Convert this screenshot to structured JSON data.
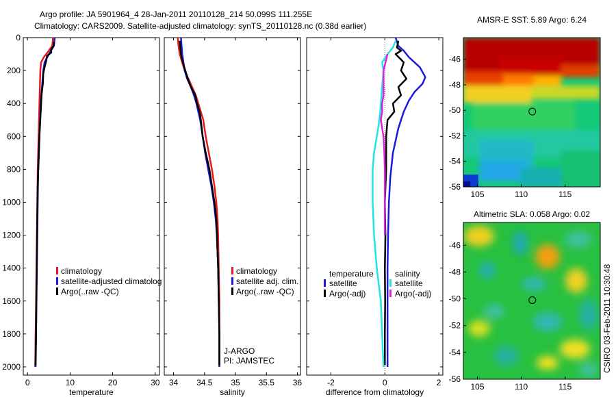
{
  "header": {
    "line1": "Argo profile: JA 5901964_4 28-Jan-2011 20110128_214 50.099S 111.255E",
    "line2": "Climatology: CARS2009. Satellite-adjusted climatology: synTS_20110128.nc (0.38d earlier)"
  },
  "side_label": "CSIRO 03-Feb-2011 10:30:48",
  "colors": {
    "climatology": "#e41a1c",
    "satellite": "#1a1adf",
    "argo": "#000000",
    "cyan": "#22e4e4",
    "magenta": "#e020e0"
  },
  "chart_data": [
    {
      "type": "line",
      "id": "temperature",
      "xlabel": "temperature",
      "ylabel": "",
      "xlim": [
        -1,
        31
      ],
      "ylim": [
        2050,
        0
      ],
      "xticks": [
        "0",
        "10",
        "20",
        "30"
      ],
      "xtick_values": [
        0,
        10,
        20,
        30
      ],
      "yticks": [
        "0",
        "200",
        "400",
        "600",
        "800",
        "1000",
        "1200",
        "1400",
        "1600",
        "1800",
        "2000"
      ],
      "ytick_values": [
        0,
        200,
        400,
        600,
        800,
        1000,
        1200,
        1400,
        1600,
        1800,
        2000
      ],
      "legend": [
        "climatology",
        "satellite-adjusted climatolog",
        "Argo(..raw -QC)"
      ],
      "series": [
        {
          "name": "climatology",
          "color": "#e41a1c",
          "points": [
            [
              6.0,
              0
            ],
            [
              5.8,
              50
            ],
            [
              5.0,
              80
            ],
            [
              3.8,
              120
            ],
            [
              3.2,
              150
            ],
            [
              3.0,
              200
            ],
            [
              2.9,
              300
            ],
            [
              2.8,
              400
            ],
            [
              2.6,
              600
            ],
            [
              2.4,
              800
            ],
            [
              2.3,
              1000
            ],
            [
              2.2,
              1200
            ],
            [
              2.1,
              1400
            ],
            [
              2.0,
              1600
            ],
            [
              1.9,
              1800
            ],
            [
              1.8,
              2000
            ]
          ]
        },
        {
          "name": "satellite-adjusted climatology",
          "color": "#1a1adf",
          "points": [
            [
              6.4,
              0
            ],
            [
              6.2,
              50
            ],
            [
              5.5,
              80
            ],
            [
              4.6,
              120
            ],
            [
              4.0,
              150
            ],
            [
              3.7,
              200
            ],
            [
              3.4,
              300
            ],
            [
              3.1,
              400
            ],
            [
              2.8,
              600
            ],
            [
              2.5,
              800
            ],
            [
              2.4,
              1000
            ],
            [
              2.3,
              1200
            ],
            [
              2.2,
              1400
            ],
            [
              2.1,
              1600
            ],
            [
              2.0,
              1800
            ],
            [
              1.9,
              2000
            ]
          ]
        },
        {
          "name": "Argo(..raw -QC)",
          "color": "#000000",
          "points": [
            [
              6.2,
              25
            ],
            [
              6.1,
              50
            ],
            [
              5.5,
              75
            ],
            [
              5.6,
              90
            ],
            [
              4.6,
              110
            ],
            [
              4.4,
              140
            ],
            [
              4.0,
              180
            ],
            [
              3.7,
              220
            ],
            [
              3.6,
              280
            ],
            [
              3.3,
              350
            ],
            [
              3.1,
              450
            ],
            [
              2.8,
              600
            ],
            [
              2.6,
              750
            ],
            [
              2.4,
              900
            ],
            [
              2.3,
              1100
            ],
            [
              2.2,
              1300
            ],
            [
              2.1,
              1500
            ],
            [
              2.0,
              1800
            ],
            [
              1.9,
              1990
            ]
          ]
        }
      ]
    },
    {
      "type": "line",
      "id": "salinity",
      "xlabel": "salinity",
      "xlim": [
        33.85,
        36.05
      ],
      "ylim": [
        2050,
        0
      ],
      "xticks": [
        "34",
        "34.5",
        "35",
        "35.5",
        "36"
      ],
      "xtick_values": [
        34,
        34.5,
        35,
        35.5,
        36
      ],
      "legend": [
        "climatology",
        "satellite adj. clim.",
        "Argo(..raw -QC)"
      ],
      "annotations": [
        "J-ARGO",
        "PI: JAMSTEC"
      ],
      "series": [
        {
          "name": "climatology",
          "color": "#e41a1c",
          "points": [
            [
              34.07,
              0
            ],
            [
              34.08,
              50
            ],
            [
              34.1,
              100
            ],
            [
              34.14,
              150
            ],
            [
              34.18,
              200
            ],
            [
              34.24,
              250
            ],
            [
              34.3,
              300
            ],
            [
              34.36,
              350
            ],
            [
              34.4,
              400
            ],
            [
              34.44,
              450
            ],
            [
              34.48,
              500
            ],
            [
              34.52,
              600
            ],
            [
              34.57,
              700
            ],
            [
              34.62,
              800
            ],
            [
              34.66,
              900
            ],
            [
              34.69,
              1000
            ],
            [
              34.71,
              1100
            ],
            [
              34.72,
              1200
            ],
            [
              34.73,
              1400
            ],
            [
              34.74,
              1600
            ],
            [
              34.74,
              1800
            ],
            [
              34.74,
              2000
            ]
          ]
        },
        {
          "name": "satellite adj. clim.",
          "color": "#1a1adf",
          "points": [
            [
              34.12,
              0
            ],
            [
              34.13,
              50
            ],
            [
              34.14,
              100
            ],
            [
              34.16,
              150
            ],
            [
              34.18,
              200
            ],
            [
              34.22,
              250
            ],
            [
              34.28,
              300
            ],
            [
              34.33,
              350
            ],
            [
              34.37,
              400
            ],
            [
              34.4,
              450
            ],
            [
              34.43,
              500
            ],
            [
              34.47,
              600
            ],
            [
              34.51,
              700
            ],
            [
              34.56,
              800
            ],
            [
              34.61,
              900
            ],
            [
              34.65,
              1000
            ],
            [
              34.68,
              1100
            ],
            [
              34.7,
              1200
            ],
            [
              34.72,
              1400
            ],
            [
              34.73,
              1600
            ],
            [
              34.74,
              1800
            ],
            [
              34.74,
              2000
            ]
          ]
        },
        {
          "name": "Argo(..raw -QC)",
          "color": "#000000",
          "points": [
            [
              34.1,
              20
            ],
            [
              34.11,
              60
            ],
            [
              34.12,
              100
            ],
            [
              34.15,
              150
            ],
            [
              34.19,
              200
            ],
            [
              34.23,
              250
            ],
            [
              34.28,
              300
            ],
            [
              34.35,
              350
            ],
            [
              34.38,
              400
            ],
            [
              34.42,
              450
            ],
            [
              34.44,
              500
            ],
            [
              34.47,
              600
            ],
            [
              34.52,
              700
            ],
            [
              34.58,
              800
            ],
            [
              34.62,
              900
            ],
            [
              34.66,
              1000
            ],
            [
              34.69,
              1100
            ],
            [
              34.7,
              1200
            ],
            [
              34.72,
              1400
            ],
            [
              34.73,
              1600
            ],
            [
              34.74,
              1800
            ],
            [
              34.74,
              1990
            ]
          ]
        }
      ]
    },
    {
      "type": "line",
      "id": "difference",
      "xlabel": "difference from climatology",
      "xlim": [
        -2.9,
        2.15
      ],
      "ylim": [
        2050,
        0
      ],
      "xticks": [
        "-2",
        "0",
        "2"
      ],
      "xtick_values": [
        -2,
        0,
        2
      ],
      "legend_groups": [
        {
          "title": "temperature",
          "items": [
            "satellite",
            "Argo(-adj)"
          ]
        },
        {
          "title": "salinity",
          "items": [
            "satellite",
            "Argo(-adj)"
          ]
        }
      ],
      "series": [
        {
          "name": "temperature satellite",
          "color": "#1a1adf",
          "points": [
            [
              0.4,
              0
            ],
            [
              0.5,
              50
            ],
            [
              0.7,
              80
            ],
            [
              0.9,
              120
            ],
            [
              1.1,
              150
            ],
            [
              1.3,
              180
            ],
            [
              1.5,
              240
            ],
            [
              1.4,
              280
            ],
            [
              1.1,
              330
            ],
            [
              0.9,
              380
            ],
            [
              0.7,
              450
            ],
            [
              0.5,
              550
            ],
            [
              0.3,
              700
            ],
            [
              0.2,
              850
            ],
            [
              0.15,
              1000
            ],
            [
              0.12,
              1200
            ],
            [
              0.1,
              1400
            ],
            [
              0.1,
              1600
            ],
            [
              0.1,
              1800
            ],
            [
              0.1,
              2000
            ]
          ]
        },
        {
          "name": "temperature Argo(-adj)",
          "color": "#000000",
          "points": [
            [
              0.5,
              20
            ],
            [
              0.45,
              60
            ],
            [
              0.6,
              80
            ],
            [
              0.4,
              100
            ],
            [
              0.7,
              150
            ],
            [
              0.6,
              200
            ],
            [
              0.8,
              250
            ],
            [
              0.5,
              300
            ],
            [
              0.6,
              350
            ],
            [
              0.3,
              400
            ],
            [
              0.35,
              450
            ],
            [
              0.1,
              500
            ],
            [
              0.05,
              600
            ],
            [
              0.05,
              800
            ],
            [
              0.0,
              1000
            ],
            [
              0.02,
              1200
            ],
            [
              0.0,
              1400
            ],
            [
              0.01,
              1600
            ],
            [
              0.0,
              1800
            ],
            [
              0.0,
              1990
            ]
          ]
        },
        {
          "name": "salinity satellite",
          "color": "#22e4e4",
          "points": [
            [
              0.4,
              20
            ],
            [
              0.3,
              60
            ],
            [
              0.1,
              100
            ],
            [
              -0.1,
              150
            ],
            [
              -0.05,
              200
            ],
            [
              -0.1,
              300
            ],
            [
              -0.15,
              400
            ],
            [
              -0.2,
              500
            ],
            [
              -0.3,
              600
            ],
            [
              -0.4,
              700
            ],
            [
              -0.45,
              800
            ],
            [
              -0.45,
              1000
            ],
            [
              -0.4,
              1200
            ],
            [
              -0.3,
              1400
            ],
            [
              -0.15,
              1600
            ],
            [
              -0.1,
              1800
            ],
            [
              -0.05,
              2000
            ]
          ]
        },
        {
          "name": "salinity Argo(-adj)",
          "color": "#e020e0",
          "points": [
            [
              0.1,
              100
            ],
            [
              -0.05,
              200
            ],
            [
              -0.05,
              300
            ],
            [
              -0.05,
              350
            ],
            [
              -0.1,
              400
            ],
            [
              -0.1,
              450
            ],
            [
              -0.15,
              500
            ],
            [
              -0.1,
              550
            ],
            [
              -0.05,
              600
            ],
            [
              -0.02,
              700
            ],
            [
              0.0,
              800
            ],
            [
              0.0,
              1000
            ],
            [
              0.0,
              1200
            ]
          ]
        }
      ]
    },
    {
      "type": "heatmap",
      "id": "sst",
      "title": "AMSR-E SST: 5.89 Argo: 6.24",
      "xlim": [
        103.4,
        119.0
      ],
      "ylim": [
        -56,
        -44.3
      ],
      "xticks": [
        "105",
        "110",
        "115"
      ],
      "xtick_values": [
        105,
        110,
        115
      ],
      "yticks": [
        "-46",
        "-48",
        "-50",
        "-52",
        "-54",
        "-56"
      ],
      "ytick_values": [
        -46,
        -48,
        -50,
        -52,
        -54,
        -56
      ],
      "marker": {
        "lon": 111.255,
        "lat": -50.099
      }
    },
    {
      "type": "heatmap",
      "id": "sla",
      "title": "Altimetric SLA: 0.058 Argo: 0.02",
      "xlim": [
        103.4,
        119.0
      ],
      "ylim": [
        -56,
        -44.3
      ],
      "xticks": [
        "105",
        "110",
        "115"
      ],
      "xtick_values": [
        105,
        110,
        115
      ],
      "yticks": [
        "-46",
        "-48",
        "-50",
        "-52",
        "-54",
        "-56"
      ],
      "ytick_values": [
        -46,
        -48,
        -50,
        -52,
        -54,
        -56
      ],
      "marker": {
        "lon": 111.255,
        "lat": -50.099
      }
    }
  ]
}
